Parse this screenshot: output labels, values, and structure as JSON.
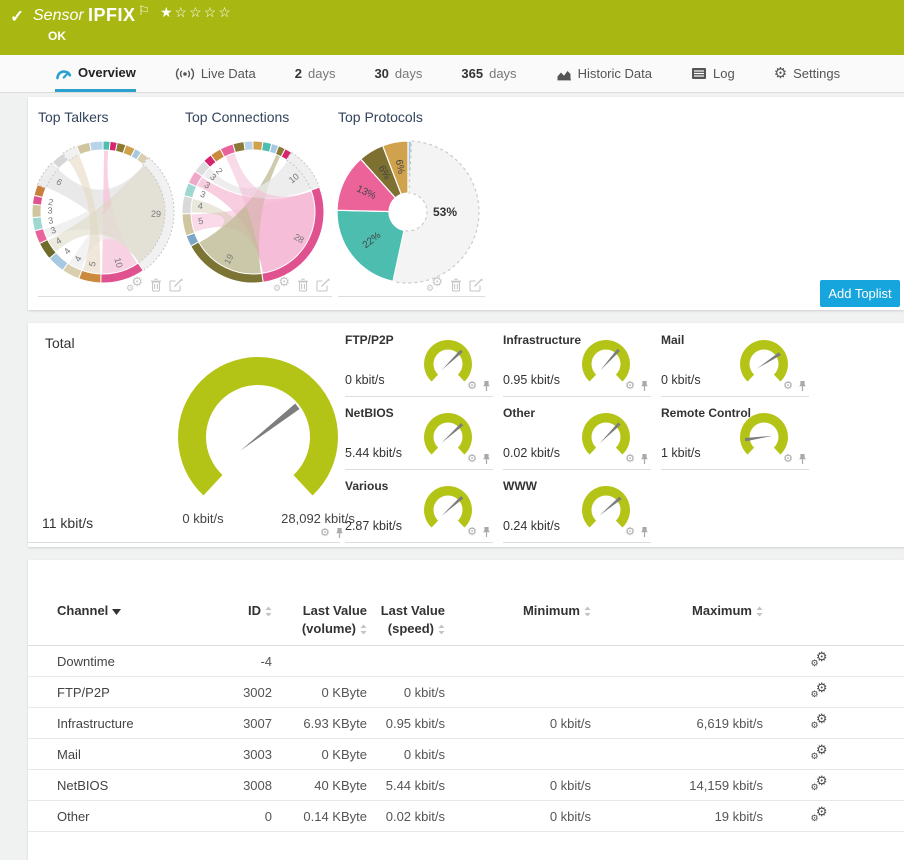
{
  "colors": {
    "brand_green": "#a8b712",
    "gauge_green": "#b4c417",
    "accent_blue": "#16a5dc",
    "tab_active_blue": "#2aa0cf",
    "title_text": "#33445b"
  },
  "icons": {
    "check": "✓",
    "flag": "⚐",
    "gear": "⚙",
    "star_filled": "★",
    "star_empty": "☆"
  },
  "header": {
    "type_label": "Sensor",
    "sensor_name": "IPFIX",
    "status": "OK",
    "rating": {
      "filled": 1,
      "total": 5
    }
  },
  "tabs": [
    {
      "label": "Overview",
      "icon": "gauge-icon",
      "active": true
    },
    {
      "label": "Live Data",
      "icon": "live-icon"
    },
    {
      "num": "2",
      "label": "days"
    },
    {
      "num": "30",
      "label": "days"
    },
    {
      "num": "365",
      "label": "days"
    },
    {
      "label": "Historic Data",
      "icon": "area-chart-icon"
    },
    {
      "label": "Log",
      "icon": "log-icon"
    },
    {
      "label": "Settings",
      "icon": "gear-icon"
    }
  ],
  "toplists": {
    "add_button": "Add Toplist",
    "panels": [
      {
        "title": "Top Talkers",
        "type": "chord",
        "segments": [
          {
            "v": 1.6,
            "c": "#4dbdb0"
          },
          {
            "v": 1.6,
            "c": "#d6246e"
          },
          {
            "v": 2.0,
            "c": "#8a7a35"
          },
          {
            "v": 2.2,
            "c": "#cfa14c"
          },
          {
            "v": 1.6,
            "c": "#a6c8e0"
          },
          {
            "v": 2.0,
            "c": "#d9cfae"
          },
          {
            "v": 29,
            "c": "#f1f1f1",
            "label": "29",
            "dash": true
          },
          {
            "v": 10,
            "c": "#e0518f",
            "label": "10"
          },
          {
            "v": 5,
            "c": "#cc8a3e",
            "label": "5"
          },
          {
            "v": 4,
            "c": "#d9cfae",
            "label": "4"
          },
          {
            "v": 4,
            "c": "#a6c8e0",
            "label": "4"
          },
          {
            "v": 4,
            "c": "#6f6b2a",
            "label": "4"
          },
          {
            "v": 3,
            "c": "#e8639c",
            "label": "3"
          },
          {
            "v": 3,
            "c": "#9fd8d0",
            "label": "3"
          },
          {
            "v": 3,
            "c": "#cfc6a0",
            "label": "3"
          },
          {
            "v": 2,
            "c": "#e0518f",
            "label": "2"
          },
          {
            "v": 2.5,
            "c": "#c9803a"
          },
          {
            "v": 6,
            "c": "#ededed",
            "label": "6",
            "dash": true
          },
          {
            "v": 3,
            "c": "#d6d6d6"
          },
          {
            "v": 3.5,
            "c": "#f1f1f1",
            "dash": true
          },
          {
            "v": 3,
            "c": "#cfc6a0"
          },
          {
            "v": 3,
            "c": "#b8d4ea"
          }
        ],
        "ribbons": [
          {
            "from": 6,
            "to": 17,
            "c": "#e3e3e3",
            "o": 0.8
          },
          {
            "from": 6,
            "to": 12,
            "c": "#e9e9e9",
            "o": 0.7
          },
          {
            "from": 7,
            "to": 0,
            "c": "#f5c3da",
            "o": 0.75
          },
          {
            "from": 6,
            "to": 9,
            "c": "#ececec",
            "o": 0.7
          },
          {
            "from": 8,
            "to": 19,
            "c": "#e6d9c2",
            "o": 0.6
          },
          {
            "from": 11,
            "to": 6,
            "c": "#d9d6c0",
            "o": 0.5
          }
        ]
      },
      {
        "title": "Top Connections",
        "type": "chord",
        "segments": [
          {
            "v": 2.2,
            "c": "#cfa14c"
          },
          {
            "v": 2.0,
            "c": "#4dbdb0"
          },
          {
            "v": 1.6,
            "c": "#a6c8e0"
          },
          {
            "v": 1.6,
            "c": "#8a7a35"
          },
          {
            "v": 1.6,
            "c": "#d6246e"
          },
          {
            "v": 10,
            "c": "#efefef",
            "label": "10",
            "dash": true
          },
          {
            "v": 28,
            "c": "#e0518f",
            "label": "28"
          },
          {
            "v": 19,
            "c": "#7b7434",
            "label": "19"
          },
          {
            "v": 2.5,
            "c": "#7da7c4"
          },
          {
            "v": 5,
            "c": "#cfc6a0",
            "label": "5"
          },
          {
            "v": 4,
            "c": "#d9d9d9",
            "label": "4"
          },
          {
            "v": 3,
            "c": "#9fd8d0",
            "label": "3"
          },
          {
            "v": 3,
            "c": "#f0a8c8",
            "label": "3"
          },
          {
            "v": 3,
            "c": "#dddddd",
            "label": "3"
          },
          {
            "v": 2,
            "c": "#d6246e",
            "label": "2"
          },
          {
            "v": 2.5,
            "c": "#cc8a3e"
          },
          {
            "v": 3,
            "c": "#e8639c"
          },
          {
            "v": 2.5,
            "c": "#8a7a35"
          },
          {
            "v": 2,
            "c": "#b8d4ea"
          }
        ],
        "ribbons": [
          {
            "from": 6,
            "to": 12,
            "c": "#f6c0d8",
            "o": 0.8
          },
          {
            "from": 6,
            "to": 9,
            "c": "#f6c0d8",
            "o": 0.6
          },
          {
            "from": 7,
            "to": 3,
            "c": "#b9b48c",
            "o": 0.7
          },
          {
            "from": 5,
            "to": 13,
            "c": "#e8e8e8",
            "o": 0.8
          },
          {
            "from": 6,
            "to": 16,
            "c": "#f3b5d2",
            "o": 0.5
          },
          {
            "from": 7,
            "to": 10,
            "c": "#c9c5a5",
            "o": 0.4
          }
        ]
      },
      {
        "title": "Top Protocols",
        "type": "donut",
        "slices": [
          {
            "pct": 0.8,
            "c": "#a9c6dd"
          },
          {
            "pct": 52.6,
            "c": "#f4f4f4",
            "label": "53%",
            "big": true,
            "dash": true
          },
          {
            "pct": 22,
            "c": "#4dbdb0",
            "label": "22%"
          },
          {
            "pct": 13,
            "c": "#ec6399",
            "label": "13%"
          },
          {
            "pct": 5.8,
            "c": "#7d7031",
            "label": "6%"
          },
          {
            "pct": 5.8,
            "c": "#d0a24e",
            "label": "6%"
          }
        ]
      }
    ]
  },
  "gauges": {
    "total": {
      "label": "Total",
      "value": "11 kbit/s",
      "axis_min": "0 kbit/s",
      "axis_max": "28,092 kbit/s",
      "needle_deg": 38
    },
    "channels": [
      {
        "label": "FTP/P2P",
        "value": "0 kbit/s",
        "needle_deg": 44
      },
      {
        "label": "Infrastructure",
        "value": "0.95 kbit/s",
        "needle_deg": 48
      },
      {
        "label": "Mail",
        "value": "0 kbit/s",
        "needle_deg": 33
      },
      {
        "label": "NetBIOS",
        "value": "5.44 kbit/s",
        "needle_deg": 42
      },
      {
        "label": "Other",
        "value": "0.02 kbit/s",
        "needle_deg": 45
      },
      {
        "label": "Remote Control",
        "value": "1 kbit/s",
        "needle_deg": 188
      },
      {
        "label": "Various",
        "value": "2.87 kbit/s",
        "needle_deg": 42
      },
      {
        "label": "WWW",
        "value": "0.24 kbit/s",
        "needle_deg": 40
      }
    ]
  },
  "table": {
    "columns": [
      {
        "label": "Channel",
        "sorted_desc": true
      },
      {
        "label": "ID",
        "sortable": true
      },
      {
        "label": "Last Value (volume)",
        "sortable": true
      },
      {
        "label": "Last Value (speed)",
        "sortable": true
      },
      {
        "label": "Minimum",
        "sortable": true
      },
      {
        "label": "Maximum",
        "sortable": true
      }
    ],
    "rows": [
      {
        "channel": "Downtime",
        "id": "-4",
        "lv_volume": "",
        "lv_speed": "",
        "min": "",
        "max": ""
      },
      {
        "channel": "FTP/P2P",
        "id": "3002",
        "lv_volume": "0 KByte",
        "lv_speed": "0 kbit/s",
        "min": "",
        "max": ""
      },
      {
        "channel": "Infrastructure",
        "id": "3007",
        "lv_volume": "6.93 KByte",
        "lv_speed": "0.95 kbit/s",
        "min": "0 kbit/s",
        "max": "6,619 kbit/s"
      },
      {
        "channel": "Mail",
        "id": "3003",
        "lv_volume": "0 KByte",
        "lv_speed": "0 kbit/s",
        "min": "",
        "max": ""
      },
      {
        "channel": "NetBIOS",
        "id": "3008",
        "lv_volume": "40 KByte",
        "lv_speed": "5.44 kbit/s",
        "min": "0 kbit/s",
        "max": "14,159 kbit/s"
      },
      {
        "channel": "Other",
        "id": "0",
        "lv_volume": "0.14 KByte",
        "lv_speed": "0.02 kbit/s",
        "min": "0 kbit/s",
        "max": "19 kbit/s"
      }
    ]
  }
}
